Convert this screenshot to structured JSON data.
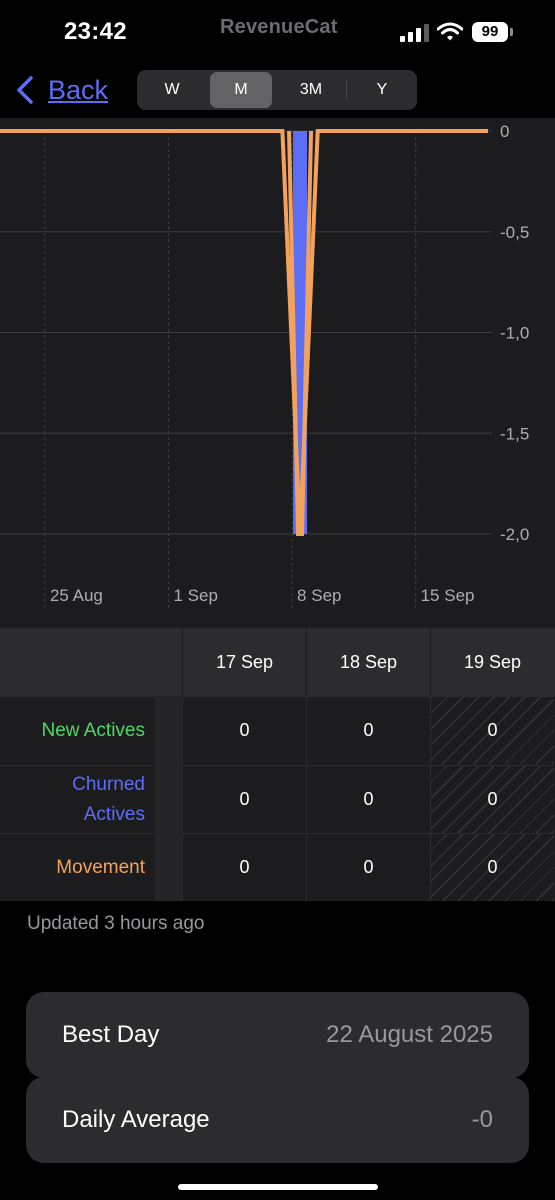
{
  "status_bar": {
    "time": "23:42",
    "brand": "RevenueCat",
    "battery": "99"
  },
  "nav": {
    "back_label": "Back",
    "segments": [
      "W",
      "M",
      "3M",
      "Y"
    ],
    "selected_segment": "M"
  },
  "chart_data": {
    "type": "line",
    "x_tick_labels": [
      "25 Aug",
      "1 Sep",
      "8 Sep",
      "15 Sep"
    ],
    "y_tick_labels": [
      "0",
      "-0,5",
      "-1,0",
      "-1,5",
      "-2,0"
    ],
    "ylim": [
      -2.0,
      0
    ],
    "grid": true,
    "series": [
      {
        "color": "#5b6ef5",
        "type": "bar",
        "values": [
          {
            "x": "8 Sep",
            "y": -2.0
          }
        ]
      },
      {
        "color": "#f2a25c",
        "type": "line",
        "values": [
          {
            "x": "22 Aug",
            "y": 0
          },
          {
            "x": "7 Sep",
            "y": 0
          },
          {
            "x": "8 Sep",
            "y": -2.0
          },
          {
            "x": "9 Sep",
            "y": 0
          },
          {
            "x": "17 Sep",
            "y": 0
          }
        ]
      }
    ]
  },
  "table": {
    "columns": [
      "17 Sep",
      "18 Sep",
      "19 Sep"
    ],
    "rows": [
      {
        "label": "New Actives",
        "color": "#4cd964",
        "values": [
          "0",
          "0",
          "0"
        ]
      },
      {
        "label": "Churned Actives",
        "color": "#5b6ef5",
        "values": [
          "0",
          "0",
          "0"
        ]
      },
      {
        "label": "Movement",
        "color": "#f2a25c",
        "values": [
          "0",
          "0",
          "0"
        ]
      }
    ]
  },
  "updated_text": "Updated 3 hours ago",
  "summary": {
    "best_day_label": "Best Day",
    "best_day_value": "22 August 2025",
    "daily_avg_label": "Daily Average",
    "daily_avg_value": "-0"
  }
}
